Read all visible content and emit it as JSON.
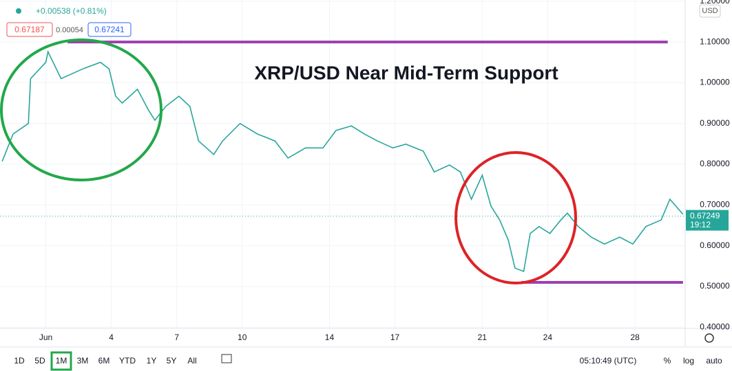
{
  "header": {
    "change": "+0.00538 (+0.81%)",
    "bid": "0.67187",
    "spread": "0.00054",
    "ask": "0.67241"
  },
  "toolbar": {
    "ranges": [
      "1D",
      "5D",
      "1M",
      "3M",
      "6M",
      "YTD",
      "1Y",
      "5Y",
      "All"
    ],
    "active": "1M",
    "clock": "05:10:49 (UTC)",
    "percent": "%",
    "log": "log",
    "auto": "auto"
  },
  "chart_data": {
    "type": "line",
    "title": "XRP/USD Near Mid-Term Support",
    "currency": "USD",
    "x": [
      -1.0,
      -0.5,
      0.2,
      0.3,
      1.0,
      1.1,
      1.7,
      2.7,
      3.5,
      3.9,
      4.2,
      4.5,
      5.2,
      5.7,
      6.0,
      6.5,
      7.1,
      7.6,
      8.0,
      8.7,
      9.1,
      9.9,
      10.7,
      11.5,
      12.1,
      12.9,
      13.7,
      14.3,
      15.0,
      15.6,
      16.2,
      16.9,
      17.5,
      18.3,
      18.8,
      19.5,
      20.0,
      20.5,
      21.0,
      21.4,
      21.8,
      22.2,
      22.5,
      22.9,
      23.2,
      23.6,
      24.1,
      24.6,
      24.9,
      25.4,
      26.0,
      26.6,
      27.3,
      27.9,
      28.5,
      29.2,
      29.6,
      30.2
    ],
    "series": [
      {
        "name": "XRP/USD",
        "color": "#26a69a",
        "values": [
          0.807,
          0.874,
          0.9,
          1.01,
          1.05,
          1.076,
          1.01,
          1.034,
          1.05,
          1.034,
          0.967,
          0.95,
          0.984,
          0.933,
          0.908,
          0.942,
          0.967,
          0.942,
          0.857,
          0.824,
          0.857,
          0.9,
          0.874,
          0.857,
          0.815,
          0.84,
          0.84,
          0.883,
          0.894,
          0.874,
          0.857,
          0.84,
          0.849,
          0.832,
          0.781,
          0.798,
          0.781,
          0.714,
          0.773,
          0.697,
          0.663,
          0.613,
          0.545,
          0.537,
          0.63,
          0.647,
          0.63,
          0.663,
          0.68,
          0.647,
          0.621,
          0.604,
          0.621,
          0.604,
          0.647,
          0.663,
          0.714,
          0.677
        ]
      }
    ],
    "last_price": 0.67249,
    "countdown": "19:12",
    "levels": [
      {
        "value": 1.1,
        "x": [
          2.0,
          29.5
        ],
        "color": "#9c3fb0"
      },
      {
        "value": 0.51,
        "x": [
          22.8,
          30.2
        ],
        "color": "#9c3fb0"
      }
    ],
    "xlim": [
      -1.1,
      30.3
    ],
    "xticks": [
      {
        "value": 1,
        "label": "Jun"
      },
      4,
      7,
      10,
      14,
      17,
      21,
      24,
      28
    ],
    "ylim": [
      0.397,
      1.203
    ],
    "yticks": [
      {
        "value": 0.4,
        "label": "0.40000"
      },
      {
        "value": 0.5,
        "label": "0.50000"
      },
      {
        "value": 0.6,
        "label": "0.60000"
      },
      {
        "value": 0.7,
        "label": "0.70000"
      },
      {
        "value": 0.8,
        "label": "0.80000"
      },
      {
        "value": 0.9,
        "label": "0.90000"
      },
      {
        "value": 1.0,
        "label": "1.00000"
      },
      {
        "value": 1.1,
        "label": "1.10000"
      },
      {
        "value": 1.2,
        "label": "1.20000"
      }
    ],
    "grid": true
  }
}
